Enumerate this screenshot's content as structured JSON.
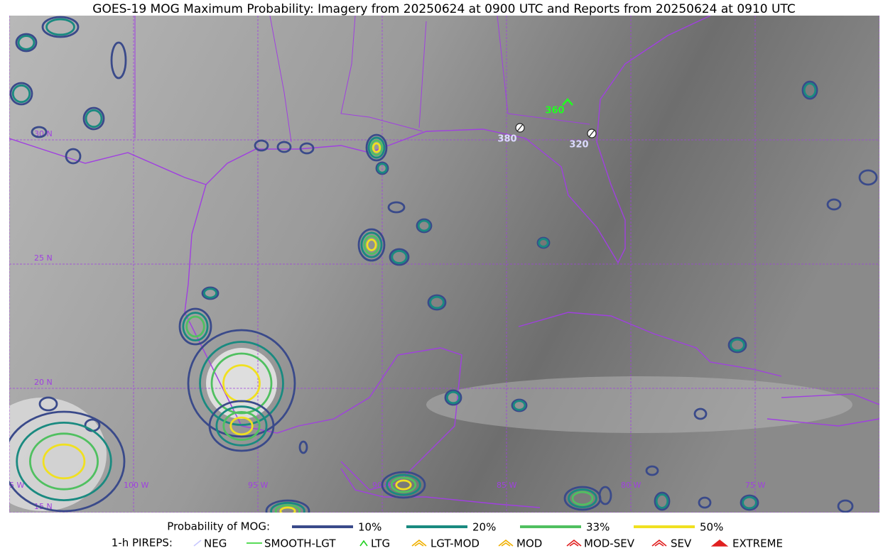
{
  "header": {
    "title": "GOES-19 MOG Maximum Probability: Imagery from 20250624 at 0900 UTC and Reports from 20250624 at 0910 UTC"
  },
  "map": {
    "lat_labels": [
      "30 N",
      "25 N",
      "20 N",
      "15 N"
    ],
    "lon_labels": [
      "105 W",
      "100 W",
      "95 W",
      "90 W",
      "85 W",
      "80 W",
      "75 W"
    ],
    "reports": [
      "380",
      "320",
      "360"
    ]
  },
  "legend": {
    "probability_title": "Probability of MOG:",
    "probability_levels": [
      "10%",
      "20%",
      "33%",
      "50%"
    ],
    "pireps_title": "1-h PIREPS:",
    "pireps": [
      "NEG",
      "SMOOTH-LGT",
      "LTG",
      "LGT-MOD",
      "MOD",
      "MOD-SEV",
      "SEV",
      "EXTREME"
    ]
  }
}
